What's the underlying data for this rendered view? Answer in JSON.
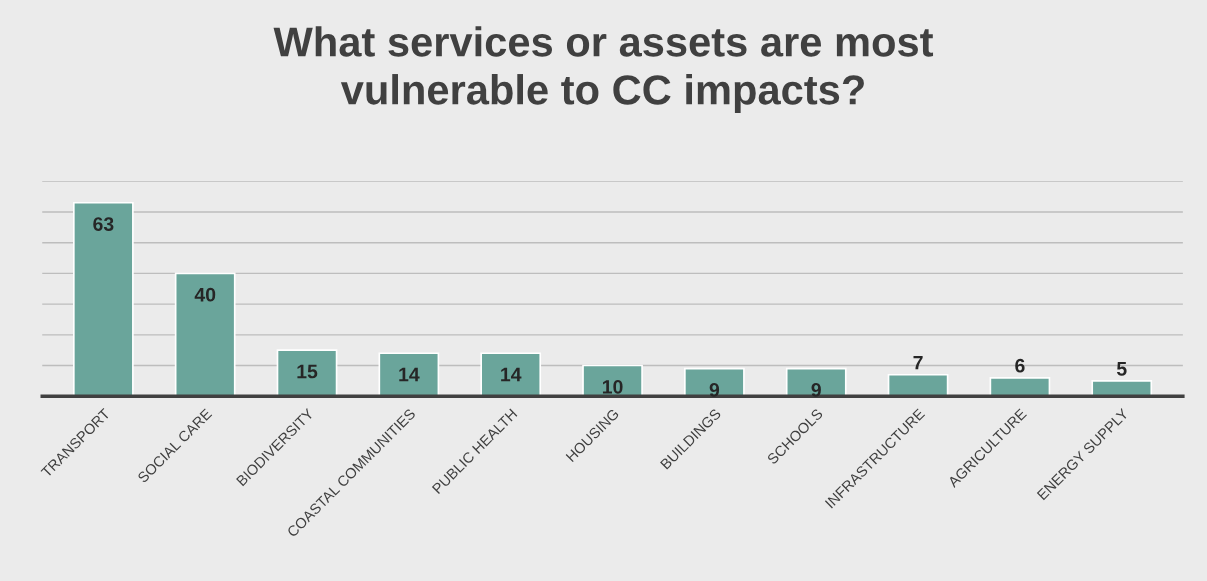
{
  "chart_data": {
    "type": "bar",
    "title": "What services or assets are most\nvulnerable to CC impacts?",
    "categories": [
      "TRANSPORT",
      "SOCIAL CARE",
      "BIODIVERSITY",
      "COASTAL COMMUNITIES",
      "PUBLIC HEALTH",
      "HOUSING",
      "BUILDINGS",
      "SCHOOLS",
      "INFRASTRUCTURE",
      "AGRICULTURE",
      "ENERGY SUPPLY"
    ],
    "values": [
      63,
      40,
      15,
      14,
      14,
      10,
      9,
      9,
      7,
      6,
      5
    ],
    "color": "#6aa59b",
    "ylim": [
      0,
      70
    ],
    "yticks": [
      {
        "value": 0,
        "label": null
      },
      {
        "value": 10,
        "label": null
      },
      {
        "value": 20,
        "label": null
      },
      {
        "value": 30,
        "label": null
      },
      {
        "value": 40,
        "label": null
      },
      {
        "value": 50,
        "label": null
      },
      {
        "value": 60,
        "label": null
      },
      {
        "value": 70,
        "label": null
      }
    ],
    "grid": "y",
    "data_labels": true,
    "tick_labels": "x"
  }
}
